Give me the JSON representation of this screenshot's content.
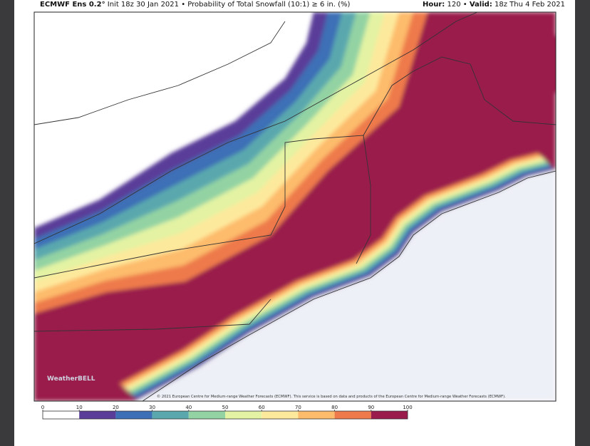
{
  "header": {
    "model": "ECMWF Ens 0.2°",
    "init": "Init 18z 30 Jan 2021",
    "separator": "•",
    "product": "Probability of Total Snowfall (10:1) ≥ 6 in. (%)",
    "hour_label": "Hour:",
    "hour": "120",
    "valid_label": "Valid:",
    "valid": "18z Thu 4 Feb 2021"
  },
  "map": {
    "logo": "WeatherBELL",
    "copyright": "© 2021 European Centre for Medium-range Weather Forecasts (ECMWF). This service is based on data and products of the European Centre for Medium-range Weather Forecasts (ECMWF)."
  },
  "colorbar": {
    "ticks": [
      0,
      10,
      20,
      30,
      40,
      50,
      60,
      70,
      80,
      90,
      100
    ],
    "colors": [
      "#ffffff",
      "#5a3d99",
      "#3d6fb6",
      "#5aa8ae",
      "#93d3a3",
      "#e3f3a3",
      "#fde99c",
      "#fdbb6c",
      "#ee7a4c",
      "#9a1c4c"
    ]
  }
}
